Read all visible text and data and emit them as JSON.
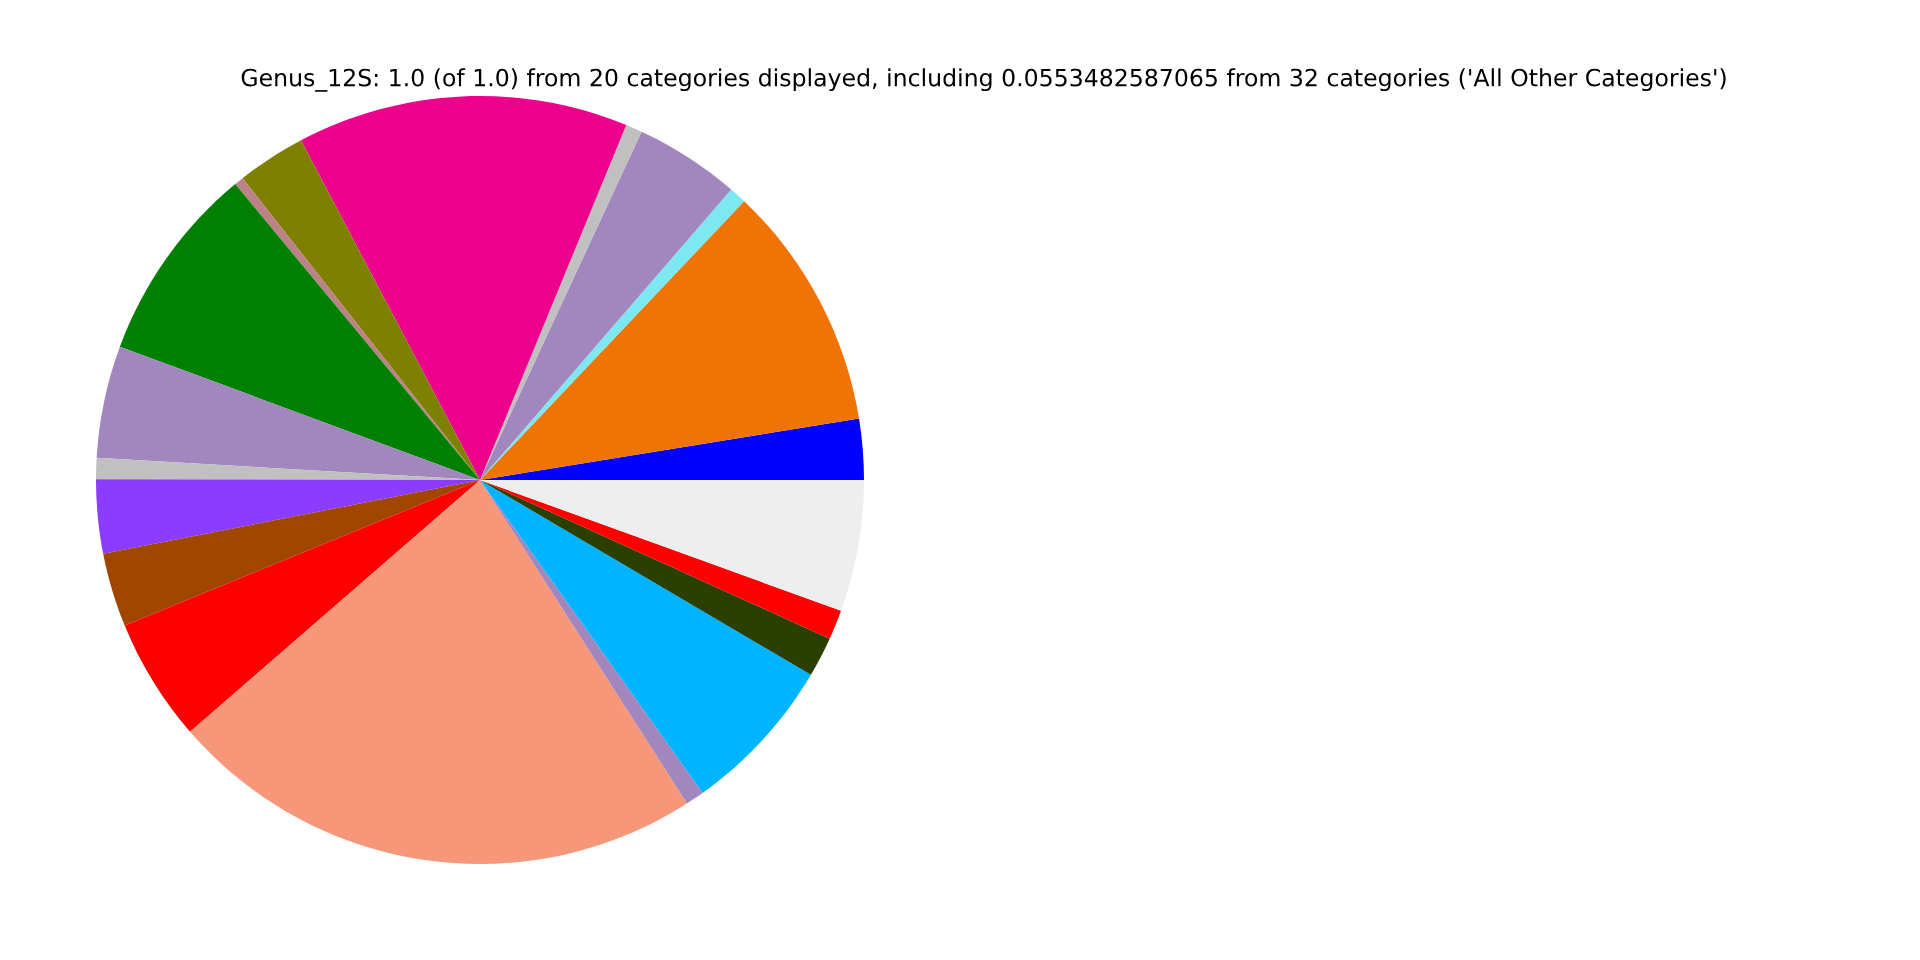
{
  "chart_data": {
    "type": "pie",
    "title": "Genus_12S: 1.0 (of 1.0) from 20 categories displayed, including 0.0553482587065 from 32 categories ('All Other Categories')",
    "categories": [
      null,
      null,
      null,
      null,
      null,
      null,
      null,
      null,
      null,
      null,
      null,
      null,
      null,
      null,
      null,
      null,
      null,
      null,
      null,
      null
    ],
    "values": [
      2.56,
      10.37,
      0.72,
      4.44,
      0.69,
      13.94,
      2.89,
      0.39,
      8.36,
      4.72,
      0.89,
      3.11,
      3.11,
      5.19,
      22.68,
      0.78,
      6.69,
      1.69,
      1.25,
      5.53
    ],
    "colors": [
      "#0000ff",
      "#f07305",
      "#7ee8f2",
      "#a287be",
      "#c0c0c0",
      "#ec008c",
      "#808000",
      "#bc8287",
      "#008000",
      "#a287be",
      "#c0c0c0",
      "#8c3cff",
      "#a04600",
      "#ff0000",
      "#f7977a",
      "#a287be",
      "#00b4ff",
      "#2a3f00",
      "#ff0000",
      "#eeeeee"
    ],
    "legend": false
  }
}
